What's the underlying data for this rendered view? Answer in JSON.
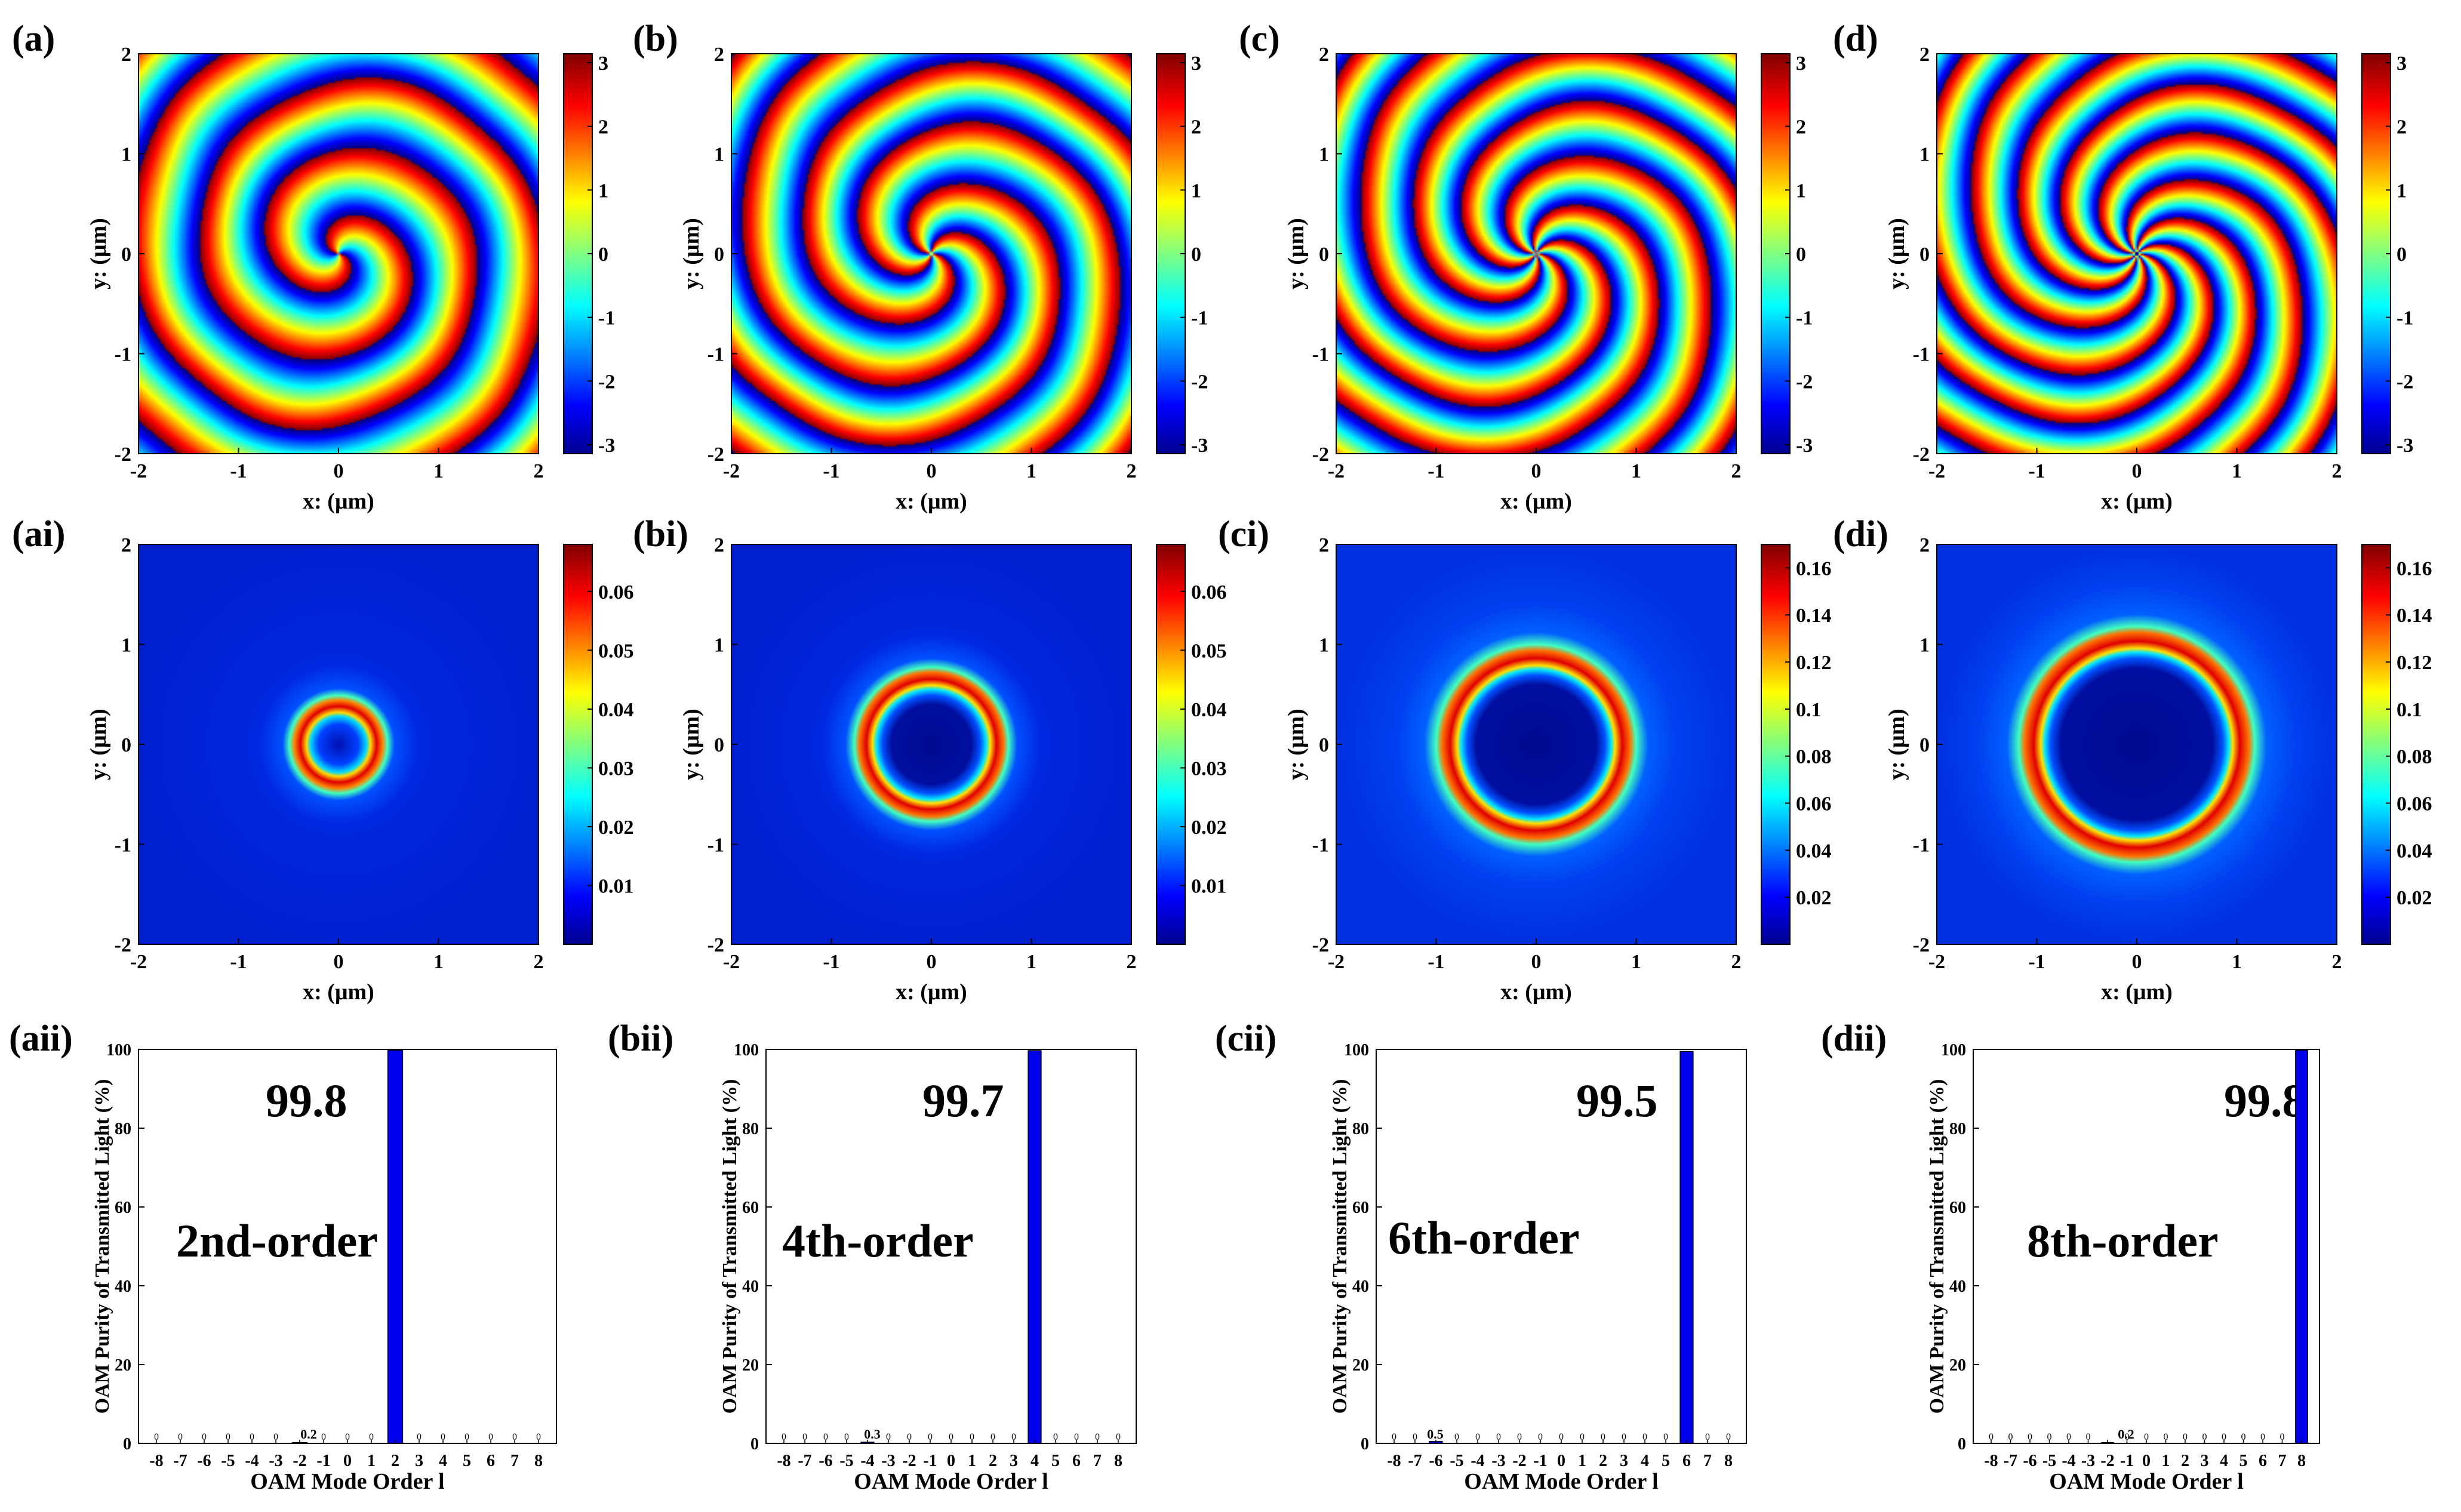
{
  "figure": {
    "phase_row": {
      "xlabel": "x: (μm)",
      "ylabel": "y: (μm)",
      "axis_ticks": [
        "-2",
        "-1",
        "0",
        "1",
        "2"
      ],
      "colorbar_ticks": [
        "3",
        "2",
        "1",
        "0",
        "-1",
        "-2",
        "-3"
      ],
      "panels": [
        {
          "label": "(a)",
          "order": 2
        },
        {
          "label": "(b)",
          "order": 4
        },
        {
          "label": "(c)",
          "order": 6
        },
        {
          "label": "(d)",
          "order": 8
        }
      ]
    },
    "intensity_row": {
      "xlabel": "x: (μm)",
      "ylabel": "y: (μm)",
      "axis_ticks": [
        "-2",
        "-1",
        "0",
        "1",
        "2"
      ],
      "panels": [
        {
          "label": "(ai)",
          "colorbar_ticks": [
            "0.06",
            "0.05",
            "0.04",
            "0.03",
            "0.02",
            "0.01"
          ]
        },
        {
          "label": "(bi)",
          "colorbar_ticks": [
            "0.06",
            "0.05",
            "0.04",
            "0.03",
            "0.02",
            "0.01"
          ]
        },
        {
          "label": "(ci)",
          "colorbar_ticks": [
            "0.16",
            "0.14",
            "0.12",
            "0.1",
            "0.08",
            "0.06",
            "0.04",
            "0.02"
          ]
        },
        {
          "label": "(di)",
          "colorbar_ticks": [
            "0.16",
            "0.14",
            "0.12",
            "0.1",
            "0.08",
            "0.06",
            "0.04",
            "0.02"
          ]
        }
      ]
    },
    "purity_row": {
      "xlabel": "OAM  Mode  Order  l",
      "ylabel": "OAM  Purity  of  Transmitted  Light (%)",
      "panels": [
        {
          "label": "(aii)",
          "annotation": "2nd-order",
          "peak_label": "99.8",
          "minor_label": "0.2"
        },
        {
          "label": "(bii)",
          "annotation": "4th-order",
          "peak_label": "99.7",
          "minor_label": "0.3"
        },
        {
          "label": "(cii)",
          "annotation": "6th-order",
          "peak_label": "99.5",
          "minor_label": "0.5"
        },
        {
          "label": "(dii)",
          "annotation": "8th-order",
          "peak_label": "99.8",
          "minor_label": "0.2"
        }
      ]
    }
  },
  "chart_data": [
    {
      "type": "heatmap",
      "title": "(a)",
      "xlabel": "x: (μm)",
      "ylabel": "y: (μm)",
      "xlim": [
        -2,
        2
      ],
      "ylim": [
        -2,
        2
      ],
      "clim": [
        -3.14,
        3.14
      ],
      "quantity": "phase",
      "topological_charge": 2
    },
    {
      "type": "heatmap",
      "title": "(b)",
      "xlabel": "x: (μm)",
      "ylabel": "y: (μm)",
      "xlim": [
        -2,
        2
      ],
      "ylim": [
        -2,
        2
      ],
      "clim": [
        -3.14,
        3.14
      ],
      "quantity": "phase",
      "topological_charge": 4
    },
    {
      "type": "heatmap",
      "title": "(c)",
      "xlabel": "x: (μm)",
      "ylabel": "y: (μm)",
      "xlim": [
        -2,
        2
      ],
      "ylim": [
        -2,
        2
      ],
      "clim": [
        -3.14,
        3.14
      ],
      "quantity": "phase",
      "topological_charge": 6
    },
    {
      "type": "heatmap",
      "title": "(d)",
      "xlabel": "x: (μm)",
      "ylabel": "y: (μm)",
      "xlim": [
        -2,
        2
      ],
      "ylim": [
        -2,
        2
      ],
      "clim": [
        -3.14,
        3.14
      ],
      "quantity": "phase",
      "topological_charge": 8
    },
    {
      "type": "heatmap",
      "title": "(ai)",
      "xlabel": "x: (μm)",
      "ylabel": "y: (μm)",
      "xlim": [
        -2,
        2
      ],
      "ylim": [
        -2,
        2
      ],
      "clim": [
        0,
        0.068
      ],
      "quantity": "intensity",
      "ring_radius_um": 0.27,
      "ring_width_um": 0.13
    },
    {
      "type": "heatmap",
      "title": "(bi)",
      "xlabel": "x: (μm)",
      "ylabel": "y: (μm)",
      "xlim": [
        -2,
        2
      ],
      "ylim": [
        -2,
        2
      ],
      "clim": [
        0,
        0.068
      ],
      "quantity": "intensity",
      "ring_radius_um": 0.58,
      "ring_width_um": 0.16
    },
    {
      "type": "heatmap",
      "title": "(ci)",
      "xlabel": "x: (μm)",
      "ylabel": "y: (μm)",
      "xlim": [
        -2,
        2
      ],
      "ylim": [
        -2,
        2
      ],
      "clim": [
        0,
        0.17
      ],
      "quantity": "intensity",
      "ring_radius_um": 0.82,
      "ring_width_um": 0.19
    },
    {
      "type": "heatmap",
      "title": "(di)",
      "xlabel": "x: (μm)",
      "ylabel": "y: (μm)",
      "xlim": [
        -2,
        2
      ],
      "ylim": [
        -2,
        2
      ],
      "clim": [
        0,
        0.17
      ],
      "quantity": "intensity",
      "ring_radius_um": 1.0,
      "ring_width_um": 0.2
    },
    {
      "type": "bar",
      "title": "(aii)",
      "xlabel": "OAM  Mode  Order  l",
      "ylabel": "OAM  Purity  of  Transmitted  Light (%)",
      "categories": [
        "-8",
        "-7",
        "-6",
        "-5",
        "-4",
        "-3",
        "-2",
        "-1",
        "0",
        "1",
        "2",
        "3",
        "4",
        "5",
        "6",
        "7",
        "8"
      ],
      "values": [
        0,
        0,
        0,
        0,
        0,
        0,
        0.2,
        0,
        0,
        0,
        99.8,
        0,
        0,
        0,
        0,
        0,
        0
      ],
      "ylim": [
        0,
        100
      ],
      "yticks": [
        "0",
        "20",
        "40",
        "60",
        "80",
        "100"
      ],
      "annotation": "2nd-order"
    },
    {
      "type": "bar",
      "title": "(bii)",
      "xlabel": "OAM  Mode  Order  l",
      "ylabel": "OAM  Purity  of  Transmitted  Light (%)",
      "categories": [
        "-8",
        "-7",
        "-6",
        "-5",
        "-4",
        "-3",
        "-2",
        "-1",
        "0",
        "1",
        "2",
        "3",
        "4",
        "5",
        "6",
        "7",
        "8"
      ],
      "values": [
        0,
        0,
        0,
        0,
        0.3,
        0,
        0,
        0,
        0,
        0,
        0,
        0,
        99.7,
        0,
        0,
        0,
        0
      ],
      "ylim": [
        0,
        100
      ],
      "yticks": [
        "0",
        "20",
        "40",
        "60",
        "80",
        "100"
      ],
      "annotation": "4th-order"
    },
    {
      "type": "bar",
      "title": "(cii)",
      "xlabel": "OAM  Mode  Order  l",
      "ylabel": "OAM  Purity  of  Transmitted  Light (%)",
      "categories": [
        "-8",
        "-7",
        "-6",
        "-5",
        "-4",
        "-3",
        "-2",
        "-1",
        "0",
        "1",
        "2",
        "3",
        "4",
        "5",
        "6",
        "7",
        "8"
      ],
      "values": [
        0,
        0,
        0.5,
        0,
        0,
        0,
        0,
        0,
        0,
        0,
        0,
        0,
        0,
        0,
        99.5,
        0,
        0
      ],
      "ylim": [
        0,
        100
      ],
      "yticks": [
        "0",
        "20",
        "40",
        "60",
        "80",
        "100"
      ],
      "annotation": "6th-order"
    },
    {
      "type": "bar",
      "title": "(dii)",
      "xlabel": "OAM  Mode  Order  l",
      "ylabel": "OAM  Purity  of  Transmitted  Light (%)",
      "categories": [
        "-8",
        "-7",
        "-6",
        "-5",
        "-4",
        "-3",
        "-2",
        "-1",
        "0",
        "1",
        "2",
        "3",
        "4",
        "5",
        "6",
        "7",
        "8"
      ],
      "values": [
        0,
        0,
        0,
        0,
        0,
        0,
        0.2,
        0,
        0,
        0,
        0,
        0,
        0,
        0,
        0,
        0,
        99.8
      ],
      "ylim": [
        0,
        100
      ],
      "yticks": [
        "0",
        "20",
        "40",
        "60",
        "80",
        "100"
      ],
      "annotation": "8th-order"
    }
  ]
}
